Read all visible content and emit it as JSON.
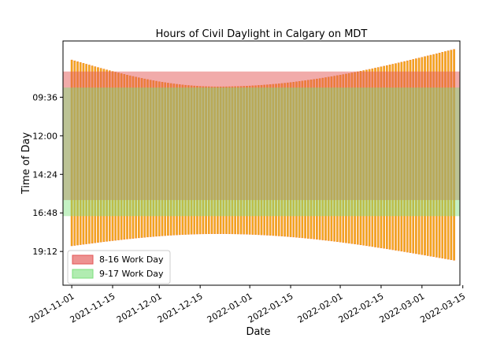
{
  "chart_data": {
    "type": "bar",
    "title": "Hours of Civil Daylight in Calgary on MDT",
    "xlabel": "Date",
    "ylabel": "Time of Day",
    "x_range": [
      "2021-10-29",
      "2022-03-14"
    ],
    "x_ticks": [
      "2021-11-01",
      "2021-11-15",
      "2021-12-01",
      "2021-12-15",
      "2022-01-01",
      "2022-01-15",
      "2022-02-01",
      "2022-02-15",
      "2022-03-01",
      "2022-03-15"
    ],
    "y_range_hours": [
      6.1,
      21.3
    ],
    "y_inverted": true,
    "y_ticks": [
      {
        "label": "09:36",
        "hours": 9.6
      },
      {
        "label": "12:00",
        "hours": 12.0
      },
      {
        "label": "14:24",
        "hours": 14.4
      },
      {
        "label": "16:48",
        "hours": 16.8
      },
      {
        "label": "19:12",
        "hours": 19.2
      }
    ],
    "bar_color": "#f2a81d",
    "bar_edge_color": "#f07a1f",
    "daylight": {
      "first_date": "2021-11-01",
      "last_date": "2022-03-12",
      "sunrise_first": 7.28,
      "sunrise_winter": 8.95,
      "sunrise_last": 6.62,
      "sunset_first": 18.85,
      "sunset_winter": 18.1,
      "sunset_last": 19.75,
      "winter_solstice": "2021-12-21"
    },
    "bands": [
      {
        "name": "8-16 Work Day",
        "start_hour": 8,
        "end_hour": 16,
        "color": "#e45756",
        "opacity": 0.5
      },
      {
        "name": "9-17 Work Day",
        "start_hour": 9,
        "end_hour": 17,
        "color": "#7ddf7d",
        "opacity": 0.45
      }
    ],
    "legend_position": "lower-left",
    "grid": false
  }
}
